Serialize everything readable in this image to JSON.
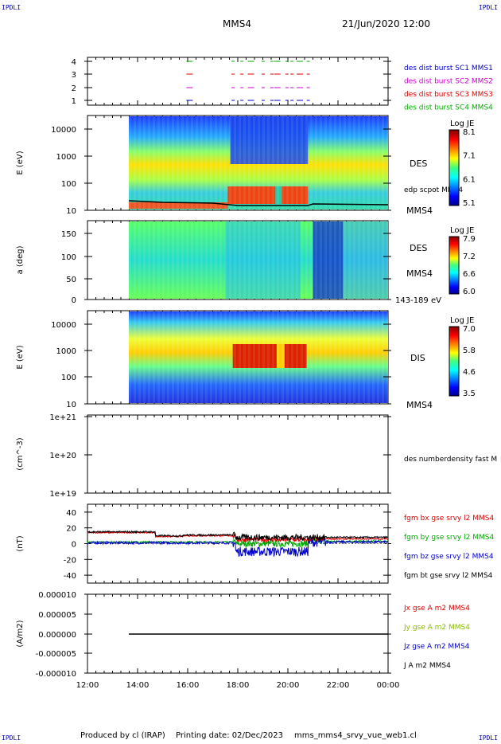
{
  "corners": {
    "tl": "IPDLI",
    "tr": "IPDLI",
    "bl": "IPDLI",
    "br": "IPDLI"
  },
  "header": {
    "spacecraft": "MMS4",
    "date": "21/Jun/2020 12:00"
  },
  "footer": {
    "produced": "Produced by cl (IRAP)",
    "printing": "Printing date: 02/Dec/2023",
    "file": "mms_mms4_srvy_vue_web1.cl"
  },
  "colors": {
    "red": "#dd0000",
    "magenta": "#cc00cc",
    "green": "#00aa00",
    "blue": "#0000cc",
    "black": "#000000"
  },
  "chart_data": [
    {
      "type": "scatter",
      "panel": "burst",
      "ylim": [
        0.5,
        4.5
      ],
      "yticks": [
        "4",
        "3",
        "2",
        "1"
      ],
      "labels": [
        {
          "text": "des dist burst SC1 MMS1",
          "color": "#0000cc"
        },
        {
          "text": "des dist burst SC2 MMS2",
          "color": "#cc00cc"
        },
        {
          "text": "des dist burst SC3 MMS3",
          "color": "#dd0000"
        },
        {
          "text": "des dist burst SC4 MMS4",
          "color": "#00aa00"
        }
      ],
      "bursts": [
        15.95,
        17.75,
        18.1,
        18.4,
        18.95,
        19.3,
        19.45,
        19.9,
        20.1,
        20.35,
        20.75
      ]
    },
    {
      "type": "heatmap",
      "panel": "des-energy",
      "ylabel": "E (eV)",
      "yticks": [
        "10000",
        "1000",
        "100",
        "10"
      ],
      "side_labels": [
        "DES",
        "edp scpot MMS4",
        "MMS4"
      ],
      "colorbar": {
        "title": "Log JE",
        "ticks": [
          "8.1",
          "7.1",
          "6.1",
          "5.1"
        ]
      }
    },
    {
      "type": "heatmap",
      "panel": "des-pitch",
      "ylabel": "a (deg)",
      "yticks": [
        "150",
        "100",
        "50",
        "0"
      ],
      "side_labels": [
        "DES",
        "MMS4",
        "143-189 eV"
      ],
      "colorbar": {
        "title": "Log JE",
        "ticks": [
          "7.9",
          "7.2",
          "6.6",
          "6.0"
        ]
      }
    },
    {
      "type": "heatmap",
      "panel": "dis-energy",
      "ylabel": "E (eV)",
      "yticks": [
        "10000",
        "1000",
        "100",
        "10"
      ],
      "side_labels": [
        "DIS",
        "MMS4"
      ],
      "colorbar": {
        "title": "Log JE",
        "ticks": [
          "7.0",
          "5.8",
          "4.6",
          "3.5"
        ]
      }
    },
    {
      "type": "line",
      "panel": "density",
      "ylabel": "(cm^-3)",
      "yticks": [
        "1e+21",
        "1e+20",
        "1e+19"
      ],
      "side_labels": [
        "des numberdensity fast M"
      ]
    },
    {
      "type": "line",
      "panel": "fgm",
      "ylabel": "(nT)",
      "ylim": [
        -50,
        50
      ],
      "yticks": [
        "40",
        "20",
        "0",
        "-20",
        "-40"
      ],
      "series": [
        {
          "name": "fgm bx gse srvy l2 MMS4",
          "color": "#dd0000"
        },
        {
          "name": "fgm by gse srvy l2 MMS4",
          "color": "#00aa00"
        },
        {
          "name": "fgm bz gse srvy l2 MMS4",
          "color": "#0000cc"
        },
        {
          "name": "fgm bt gse srvy l2 MMS4",
          "color": "#000000"
        }
      ]
    },
    {
      "type": "line",
      "panel": "current",
      "ylabel": "(A/m2)",
      "yticks": [
        "0.000010",
        "0.000005",
        "0.000000",
        "-0.000005",
        "-0.000010"
      ],
      "series": [
        {
          "name": "Jx gse A m2 MMS4",
          "color": "#dd0000"
        },
        {
          "name": "Jy gse A m2 MMS4",
          "color": "#88bb00"
        },
        {
          "name": "Jz gse A m2 MMS4",
          "color": "#0000cc"
        },
        {
          "name": "J A m2 MMS4",
          "color": "#000000"
        }
      ]
    }
  ],
  "xaxis": {
    "ticks": [
      "12:00",
      "14:00",
      "16:00",
      "18:00",
      "20:00",
      "22:00",
      "00:00"
    ]
  }
}
